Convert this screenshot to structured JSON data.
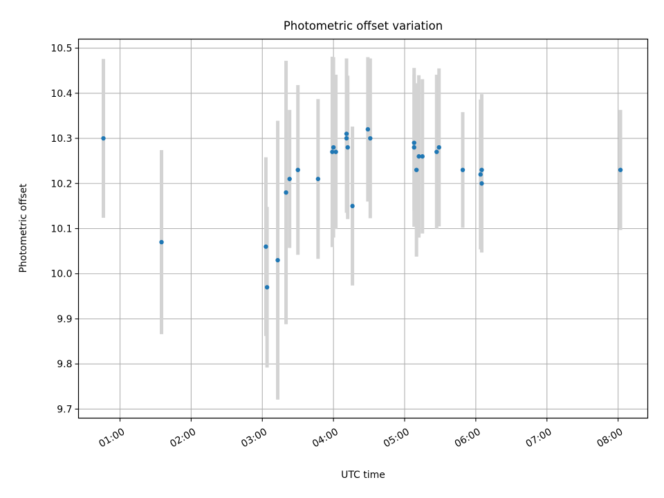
{
  "chart_data": {
    "type": "scatter",
    "title": "Photometric offset variation",
    "xlabel": "UTC time",
    "ylabel": "Photometric offset",
    "x_axis_type": "time",
    "xlim": [
      "00:25",
      "08:25"
    ],
    "ylim": [
      9.68,
      10.52
    ],
    "x_tick_labels": [
      "01:00",
      "02:00",
      "03:00",
      "04:00",
      "05:00",
      "06:00",
      "07:00",
      "08:00"
    ],
    "y_tick_values": [
      9.7,
      9.8,
      9.9,
      10.0,
      10.1,
      10.2,
      10.3,
      10.4,
      10.5
    ],
    "y_tick_labels": [
      "9.7",
      "9.8",
      "9.9",
      "10.0",
      "10.1",
      "10.2",
      "10.3",
      "10.4",
      "10.5"
    ],
    "grid": true,
    "legend": "none",
    "colors": {
      "point": "#1f77b4",
      "errorbar": "#d3d3d3",
      "grid": "#b0b0b0"
    },
    "series": [
      {
        "points": [
          {
            "x": "00:46",
            "y": 10.3,
            "err": 0.176
          },
          {
            "x": "01:35",
            "y": 10.07,
            "err": 0.204
          },
          {
            "x": "03:03",
            "y": 10.06,
            "err": 0.198
          },
          {
            "x": "03:04",
            "y": 9.97,
            "err": 0.178
          },
          {
            "x": "03:13",
            "y": 10.03,
            "err": 0.309
          },
          {
            "x": "03:20",
            "y": 10.18,
            "err": 0.292
          },
          {
            "x": "03:23",
            "y": 10.21,
            "err": 0.153
          },
          {
            "x": "03:30",
            "y": 10.23,
            "err": 0.188
          },
          {
            "x": "03:47",
            "y": 10.21,
            "err": 0.177
          },
          {
            "x": "03:59",
            "y": 10.27,
            "err": 0.211
          },
          {
            "x": "04:00",
            "y": 10.28,
            "err": 0.2
          },
          {
            "x": "04:02",
            "y": 10.27,
            "err": 0.171
          },
          {
            "x": "04:11",
            "y": 10.3,
            "err": 0.165
          },
          {
            "x": "04:11",
            "y": 10.31,
            "err": 0.167
          },
          {
            "x": "04:12",
            "y": 10.28,
            "err": 0.159
          },
          {
            "x": "04:16",
            "y": 10.15,
            "err": 0.176
          },
          {
            "x": "04:29",
            "y": 10.32,
            "err": 0.16
          },
          {
            "x": "04:31",
            "y": 10.3,
            "err": 0.177
          },
          {
            "x": "05:08",
            "y": 10.29,
            "err": 0.151
          },
          {
            "x": "05:08",
            "y": 10.28,
            "err": 0.176
          },
          {
            "x": "05:10",
            "y": 10.23,
            "err": 0.192
          },
          {
            "x": "05:12",
            "y": 10.26,
            "err": 0.18
          },
          {
            "x": "05:15",
            "y": 10.26,
            "err": 0.171
          },
          {
            "x": "05:27",
            "y": 10.27,
            "err": 0.171
          },
          {
            "x": "05:29",
            "y": 10.28,
            "err": 0.175
          },
          {
            "x": "05:49",
            "y": 10.23,
            "err": 0.128
          },
          {
            "x": "06:04",
            "y": 10.22,
            "err": 0.166
          },
          {
            "x": "06:05",
            "y": 10.23,
            "err": 0.168
          },
          {
            "x": "06:05",
            "y": 10.2,
            "err": 0.153
          },
          {
            "x": "08:02",
            "y": 10.23,
            "err": 0.133
          }
        ]
      }
    ]
  }
}
